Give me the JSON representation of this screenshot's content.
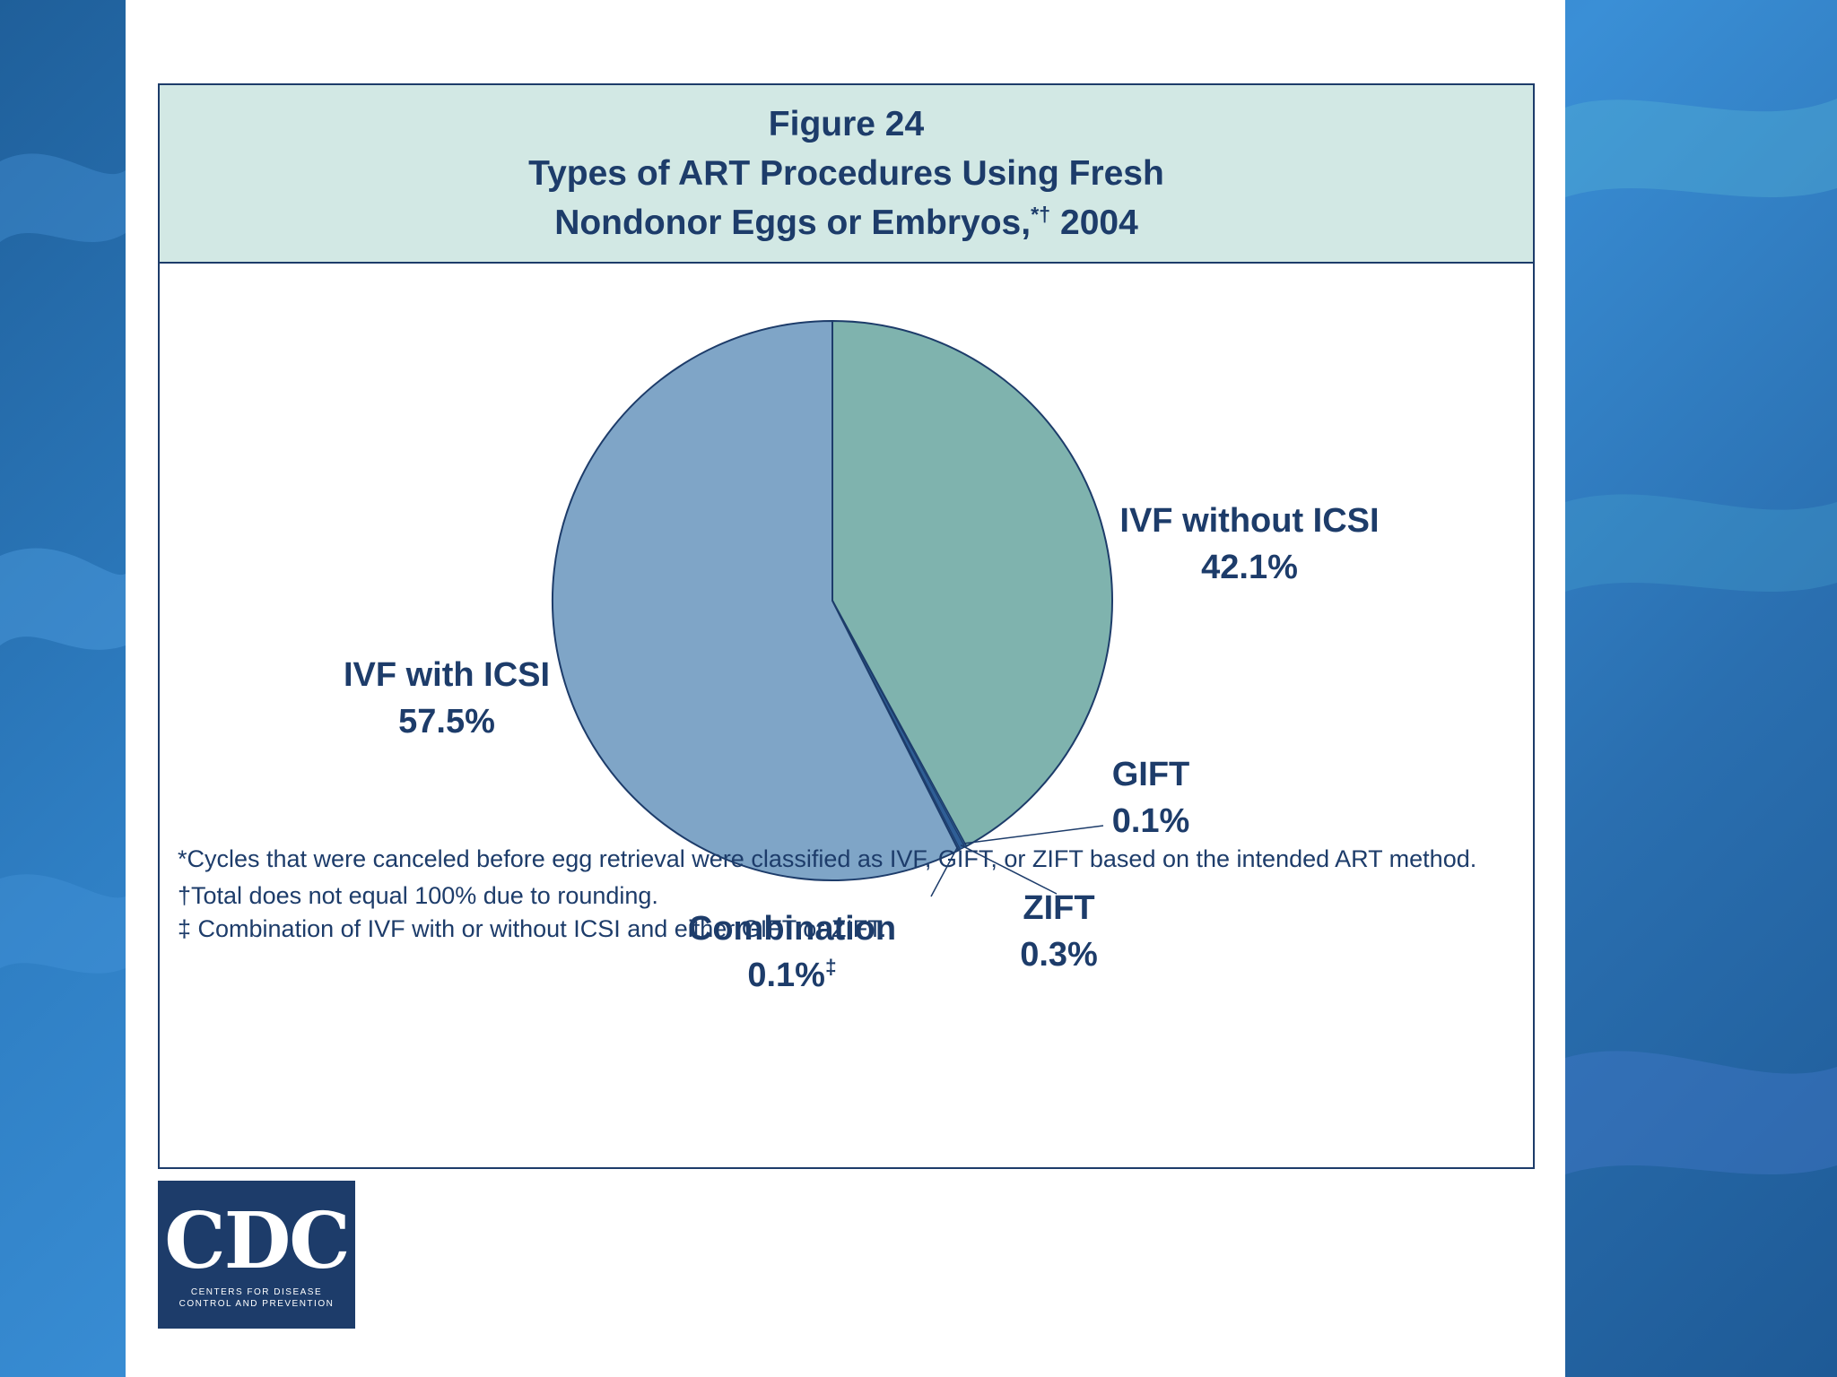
{
  "colors": {
    "ivf_without_icsi": "#7fb3ae",
    "ivf_with_icsi": "#7fa5c7",
    "small_slices": "#2f5e95",
    "outline": "#1d3c6a",
    "title_band": "#d2e8e4"
  },
  "title": {
    "line1": "Figure 24",
    "line2": "Types of ART Procedures Using Fresh",
    "line3_text": "Nondonor Eggs or Embryos,",
    "line3_marks": "*†",
    "line3_year": " 2004"
  },
  "chart_data": {
    "type": "pie",
    "title": "Types of ART Procedures Using Fresh Nondonor Eggs or Embryos, 2004",
    "slices": [
      {
        "label": "IVF without ICSI",
        "value": 42.1,
        "display": "42.1%",
        "mark": ""
      },
      {
        "label": "GIFT",
        "value": 0.1,
        "display": "0.1%",
        "mark": ""
      },
      {
        "label": "ZIFT",
        "value": 0.3,
        "display": "0.3%",
        "mark": ""
      },
      {
        "label": "Combination",
        "value": 0.1,
        "display": "0.1%",
        "mark": "‡"
      },
      {
        "label": "IVF with ICSI",
        "value": 57.5,
        "display": "57.5%",
        "mark": ""
      }
    ]
  },
  "footnotes": {
    "note1": "*Cycles that were canceled before egg retrieval were classified as IVF, GIFT, or ZIFT based on the intended ART method.",
    "note2": "†Total does not equal 100% due to rounding.",
    "note3": "‡ Combination of IVF with or without ICSI and either GIFT or ZIFT."
  },
  "logo": {
    "text": "CDC",
    "subtitle_line1": "CENTERS FOR DISEASE",
    "subtitle_line2": "CONTROL AND PREVENTION"
  }
}
